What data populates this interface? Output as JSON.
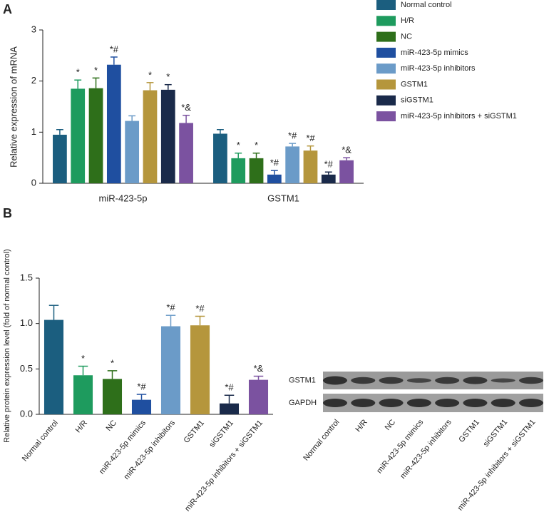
{
  "chart_data": [
    {
      "type": "bar",
      "panel": "A",
      "ylabel": "Relative expression of  mRNA",
      "categories": [
        "miR-423-5p",
        "GSTM1"
      ],
      "ylim": [
        0,
        3
      ],
      "yticks": [
        0,
        1,
        2,
        3
      ],
      "series": [
        {
          "name": "Normal control",
          "color": "#1b5e7f",
          "values": [
            0.95,
            0.97
          ],
          "errors": [
            0.1,
            0.08
          ],
          "annotations": [
            null,
            null
          ]
        },
        {
          "name": "H/R",
          "color": "#1e9b5e",
          "values": [
            1.85,
            0.49
          ],
          "errors": [
            0.17,
            0.1
          ],
          "annotations": [
            "*",
            "*"
          ]
        },
        {
          "name": "NC",
          "color": "#2e6f1a",
          "values": [
            1.86,
            0.49
          ],
          "errors": [
            0.2,
            0.1
          ],
          "annotations": [
            "*",
            "*"
          ]
        },
        {
          "name": "miR-423-5p mimics",
          "color": "#1f4fa0",
          "values": [
            2.32,
            0.17
          ],
          "errors": [
            0.15,
            0.08
          ],
          "annotations": [
            "*#",
            "*#"
          ]
        },
        {
          "name": "miR-423-5p inhibitors",
          "color": "#6b9bc8",
          "values": [
            1.22,
            0.72
          ],
          "errors": [
            0.1,
            0.06
          ],
          "annotations": [
            null,
            "*#"
          ]
        },
        {
          "name": "GSTM1",
          "color": "#b5963c",
          "values": [
            1.82,
            0.64
          ],
          "errors": [
            0.15,
            0.09
          ],
          "annotations": [
            "*",
            "*#"
          ]
        },
        {
          "name": "siGSTM1",
          "color": "#1a2a4a",
          "values": [
            1.83,
            0.17
          ],
          "errors": [
            0.1,
            0.05
          ],
          "annotations": [
            "*",
            "*#"
          ]
        },
        {
          "name": "miR-423-5p inhibitors + siGSTM1",
          "color": "#7b52a0",
          "values": [
            1.18,
            0.45
          ],
          "errors": [
            0.15,
            0.05
          ],
          "annotations": [
            "*&",
            "*&"
          ]
        }
      ]
    },
    {
      "type": "bar",
      "panel": "B",
      "ylabel": "Relative protein expression level (fold of normal control)",
      "categories": [
        "Normal control",
        "H/R",
        "NC",
        "miR-423-5p mimics",
        "miR-423-5p inhibitors",
        "GSTM1",
        "siGSTM1",
        "miR-423-5p inhibitors + siGSTM1"
      ],
      "values": [
        1.04,
        0.43,
        0.39,
        0.16,
        0.97,
        0.98,
        0.12,
        0.38
      ],
      "errors": [
        0.16,
        0.1,
        0.09,
        0.06,
        0.12,
        0.1,
        0.09,
        0.04
      ],
      "annotations": [
        null,
        "*",
        "*",
        "*#",
        "*#",
        "*#",
        "*#",
        "*&"
      ],
      "colors": [
        "#1b5e7f",
        "#1e9b5e",
        "#2e6f1a",
        "#1f4fa0",
        "#6b9bc8",
        "#b5963c",
        "#1a2a4a",
        "#7b52a0"
      ],
      "ylim": [
        0,
        1.5
      ],
      "yticks": [
        {
          "value": 0,
          "label": "0.0"
        },
        0.5,
        {
          "value": 1,
          "label": "1.0"
        },
        1.5
      ]
    }
  ],
  "blot": {
    "rows": [
      "GSTM1",
      "GAPDH"
    ],
    "lanes": [
      "Normal control",
      "H/R",
      "NC",
      "miR-423-5p mimics",
      "miR-423-5p inhibitors",
      "GSTM1",
      "siGSTM1",
      "miR-423-5p inhibitors + siGSTM1"
    ]
  }
}
